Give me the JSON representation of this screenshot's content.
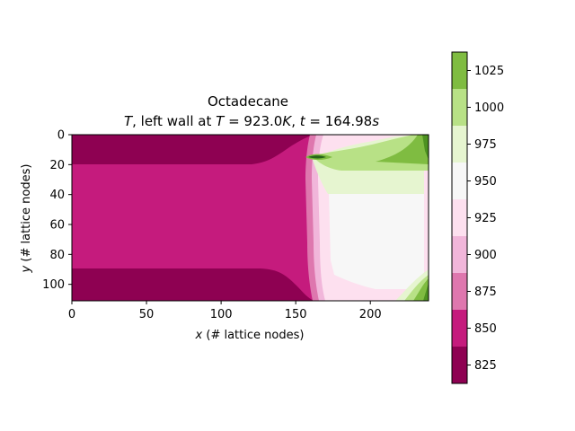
{
  "chart_data": {
    "type": "heatmap",
    "title": "Octadecane",
    "subtitle_parts": {
      "var": "T",
      "mid": ", left wall at ",
      "var2": "T",
      "eq1": " = 923.0",
      "unit1": "K",
      "sep": ", ",
      "var3": "t",
      "eq2": " = 164.98",
      "unit2": "s"
    },
    "xlabel_parts": {
      "var": "x",
      "text": " (# lattice nodes)"
    },
    "ylabel_parts": {
      "var": "y",
      "text": " (# lattice nodes)"
    },
    "xlim": [
      0,
      239
    ],
    "ylim": [
      111,
      0
    ],
    "y_inverted": true,
    "x_ticks": [
      0,
      50,
      100,
      150,
      200
    ],
    "x_tick_labels": [
      "0",
      "50",
      "100",
      "150",
      "200"
    ],
    "y_ticks": [
      0,
      20,
      40,
      60,
      80,
      100
    ],
    "y_tick_labels": [
      "0",
      "20",
      "40",
      "60",
      "80",
      "100"
    ],
    "colorbar": {
      "levels": [
        812.5,
        837.5,
        862.5,
        887.5,
        912.5,
        937.5,
        962.5,
        987.5,
        1012.5,
        1037.5
      ],
      "tick_values": [
        825,
        850,
        875,
        900,
        925,
        950,
        975,
        1000,
        1025
      ],
      "tick_labels": [
        "825",
        "850",
        "875",
        "900",
        "925",
        "950",
        "975",
        "1000",
        "1025"
      ],
      "colors": [
        "#8e0152",
        "#c51b7d",
        "#de77ae",
        "#f1b6da",
        "#fde0ef",
        "#f7f7f7",
        "#e6f5d0",
        "#b8e186",
        "#7fbc41",
        "#4d9221",
        "#276419"
      ]
    },
    "regions": [
      {
        "name": "solid-background",
        "level_index": 0,
        "x": [
          0,
          165
        ],
        "y": [
          0,
          111
        ]
      },
      {
        "name": "central-band",
        "level_index": 1,
        "note": "horizontal band y 20-91, widening near x~150"
      },
      {
        "name": "melt-front",
        "level_index": 2,
        "x_front": 155
      },
      {
        "name": "liquid-core",
        "level_index": 5,
        "x": [
          168,
          236
        ],
        "y": [
          40,
          90
        ]
      },
      {
        "name": "upper-liquid",
        "level_index": 6,
        "x": [
          160,
          236
        ],
        "y": [
          15,
          40
        ]
      },
      {
        "name": "top-right-hot",
        "level_index": 8,
        "x": [
          215,
          239
        ],
        "y": [
          0,
          20
        ]
      },
      {
        "name": "bottom-right-hot",
        "level_index": 8,
        "x": [
          222,
          239
        ],
        "y": [
          95,
          111
        ]
      }
    ]
  }
}
